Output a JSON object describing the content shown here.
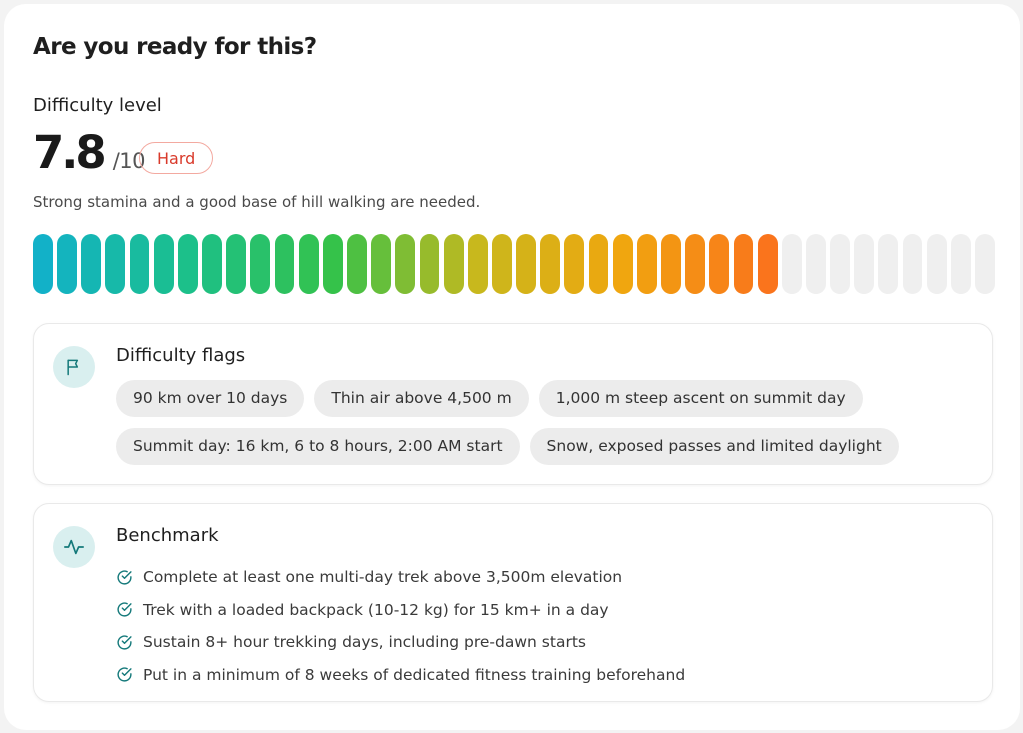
{
  "header": {
    "title": "Are you ready for this?"
  },
  "difficulty": {
    "label": "Difficulty level",
    "score": "7.8",
    "out_of": "/10",
    "badge": "Hard",
    "description": "Strong stamina and a good base of hill walking are needed.",
    "meter": {
      "value": 7.8,
      "max": 10,
      "segments": 40,
      "filled": 31
    },
    "colors": {
      "badge_text": "#d93a2b",
      "badge_border": "#f3a9a0",
      "empty_segment": "#efefef",
      "gradient": [
        "#12b1c8",
        "#1cc08a",
        "#35c24a",
        "#c8b81d",
        "#f0a60f",
        "#fa741c"
      ]
    }
  },
  "flags": {
    "icon": "flag-icon",
    "title": "Difficulty flags",
    "chips": [
      "90 km over 10 days",
      "Thin air above 4,500 m",
      "1,000 m steep ascent on summit day",
      "Summit day: 16 km, 6 to 8 hours, 2:00 AM start",
      "Snow, exposed passes and limited daylight"
    ]
  },
  "benchmark": {
    "icon": "activity-pulse-icon",
    "title": "Benchmark",
    "items": [
      "Complete at least one multi-day trek above 3,500m elevation",
      "Trek with a loaded backpack (10-12 kg) for 15 km+ in a day",
      "Sustain 8+ hour trekking days, including pre-dawn starts",
      "Put in a minimum of 8 weeks of dedicated fitness training beforehand"
    ]
  }
}
